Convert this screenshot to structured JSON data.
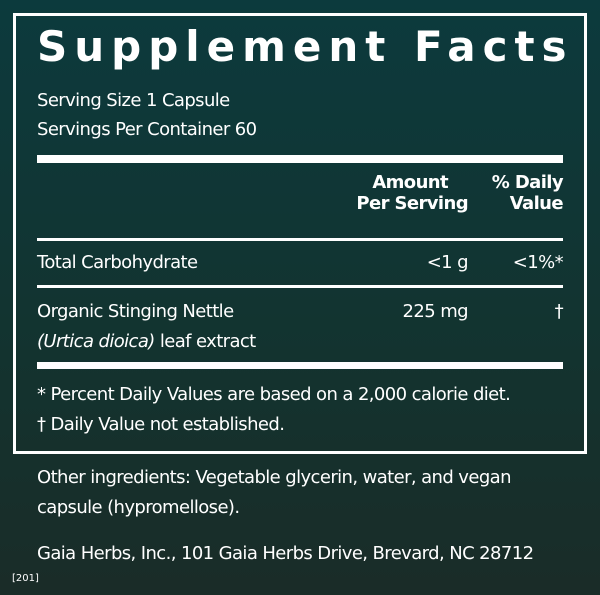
{
  "title": "Supplement Facts",
  "serving_size": "Serving Size 1 Capsule",
  "servings_per_container": "Servings Per Container 60",
  "headers": {
    "amount_1": "Amount",
    "amount_2": "Per Serving",
    "dv_1": "% Daily",
    "dv_2": "Value"
  },
  "rows": [
    {
      "name": "Total Carbohydrate",
      "amount": "<1 g",
      "dv": "<1%*"
    },
    {
      "name": "Organic Stinging Nettle",
      "name_italic": "(Urtica dioica)",
      "name_rest": " leaf extract",
      "amount": "225 mg",
      "dv": "†"
    }
  ],
  "footnotes": [
    "*  Percent Daily Values are based on a 2,000 calorie diet.",
    "† Daily Value not established."
  ],
  "other_ingredients": [
    "Other ingredients: Vegetable glycerin, water, and vegan",
    "capsule (hypromellose)."
  ],
  "manufacturer": "Gaia Herbs, Inc., 101 Gaia Herbs Drive, Brevard, NC 28712",
  "code": "[201]"
}
